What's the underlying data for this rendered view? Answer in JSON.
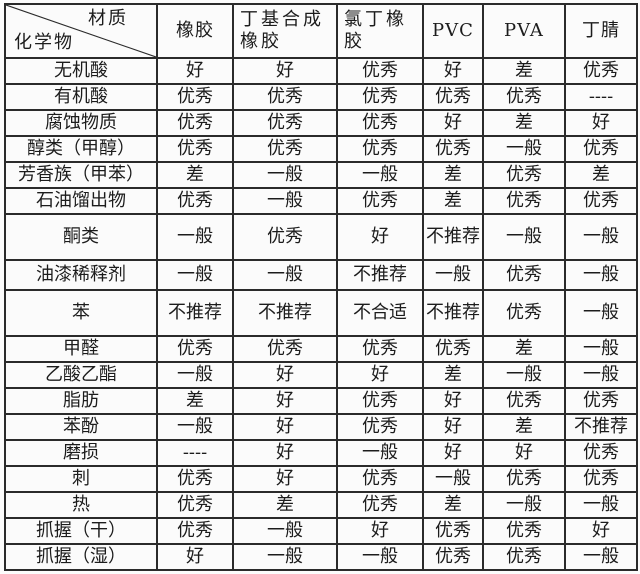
{
  "table": {
    "corner_top": "材质",
    "corner_bottom": "化学物",
    "columns": [
      "橡胶",
      "丁基合成橡胶",
      "氯丁橡胶",
      "PVC",
      "PVA",
      "丁腈"
    ],
    "rows": [
      {
        "label": "无机酸",
        "values": [
          "好",
          "好",
          "优秀",
          "好",
          "差",
          "优秀"
        ]
      },
      {
        "label": "有机酸",
        "values": [
          "优秀",
          "优秀",
          "优秀",
          "优秀",
          "优秀",
          "----"
        ]
      },
      {
        "label": "腐蚀物质",
        "values": [
          "优秀",
          "优秀",
          "优秀",
          "好",
          "差",
          "好"
        ]
      },
      {
        "label": "醇类（甲醇）",
        "values": [
          "优秀",
          "优秀",
          "优秀",
          "优秀",
          "一般",
          "优秀"
        ]
      },
      {
        "label": "芳香族（甲苯）",
        "values": [
          "差",
          "一般",
          "一般",
          "差",
          "优秀",
          "差"
        ]
      },
      {
        "label": "石油馏出物",
        "values": [
          "优秀",
          "一般",
          "优秀",
          "差",
          "优秀",
          "优秀"
        ]
      },
      {
        "label": "酮类",
        "values": [
          "一般",
          "优秀",
          "好",
          "不推荐",
          "一般",
          "一般"
        ]
      },
      {
        "label": "油漆稀释剂",
        "values": [
          "一般",
          "一般",
          "不推荐",
          "一般",
          "优秀",
          "一般"
        ]
      },
      {
        "label": "苯",
        "values": [
          "不推荐",
          "不推荐",
          "不合适",
          "不推荐",
          "优秀",
          "一般"
        ]
      },
      {
        "label": "甲醛",
        "values": [
          "优秀",
          "优秀",
          "优秀",
          "优秀",
          "差",
          "一般"
        ]
      },
      {
        "label": "乙酸乙酯",
        "values": [
          "一般",
          "好",
          "好",
          "差",
          "一般",
          "一般"
        ]
      },
      {
        "label": "脂肪",
        "values": [
          "差",
          "好",
          "优秀",
          "好",
          "优秀",
          "优秀"
        ]
      },
      {
        "label": "苯酚",
        "values": [
          "一般",
          "好",
          "优秀",
          "好",
          "差",
          "不推荐"
        ]
      },
      {
        "label": "磨损",
        "values": [
          "----",
          "好",
          "一般",
          "好",
          "好",
          "优秀"
        ]
      },
      {
        "label": "刺",
        "values": [
          "优秀",
          "好",
          "优秀",
          "一般",
          "优秀",
          "优秀"
        ]
      },
      {
        "label": "热",
        "values": [
          "优秀",
          "差",
          "优秀",
          "差",
          "一般",
          "一般"
        ]
      },
      {
        "label": "抓握（干）",
        "values": [
          "优秀",
          "一般",
          "好",
          "优秀",
          "优秀",
          "好"
        ]
      },
      {
        "label": "抓握（湿）",
        "values": [
          "好",
          "一般",
          "一般",
          "优秀",
          "优秀",
          "一般"
        ]
      }
    ]
  }
}
